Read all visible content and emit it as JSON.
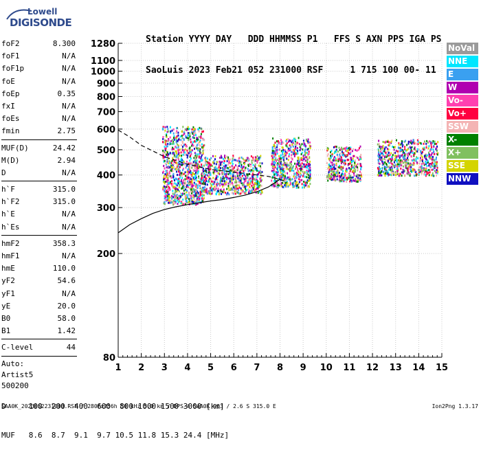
{
  "logo": {
    "line1": "Lowell",
    "line2": "DIGISONDE"
  },
  "header": {
    "line1": "Station YYYY DAY   DDD HHMMSS P1   FFS S AXN PPS IGA PS",
    "line2": "SaoLuis 2023 Feb21 052 231000 RSF     1 715 100 00- 11"
  },
  "params": [
    {
      "k": "foF2",
      "v": "8.300"
    },
    {
      "k": "foF1",
      "v": "N/A"
    },
    {
      "k": "foF1p",
      "v": "N/A"
    },
    {
      "k": "foE",
      "v": "N/A"
    },
    {
      "k": "foEp",
      "v": "0.35"
    },
    {
      "k": "fxI",
      "v": "N/A"
    },
    {
      "k": "foEs",
      "v": "N/A"
    },
    {
      "k": "fmin",
      "v": "2.75"
    },
    {
      "k": "MUF(D)",
      "v": "24.42",
      "sep": true
    },
    {
      "k": "M(D)",
      "v": "2.94"
    },
    {
      "k": "D",
      "v": "N/A"
    },
    {
      "k": "h`F",
      "v": "315.0",
      "sep": true
    },
    {
      "k": "h`F2",
      "v": "315.0"
    },
    {
      "k": "h`E",
      "v": "N/A"
    },
    {
      "k": "h`Es",
      "v": "N/A"
    },
    {
      "k": "hmF2",
      "v": "358.3",
      "sep": true
    },
    {
      "k": "hmF1",
      "v": "N/A"
    },
    {
      "k": "hmE",
      "v": "110.0"
    },
    {
      "k": "yF2",
      "v": "54.6"
    },
    {
      "k": "yF1",
      "v": "N/A"
    },
    {
      "k": "yE",
      "v": "20.0"
    },
    {
      "k": "B0",
      "v": "58.0"
    },
    {
      "k": "B1",
      "v": "1.42"
    },
    {
      "k": "C-level",
      "v": "44",
      "sep": true
    }
  ],
  "auto": [
    "Auto:",
    "Artist5",
    "500200"
  ],
  "legend": [
    {
      "label": "NoVal",
      "color": "#9a9a9a"
    },
    {
      "label": "NNE",
      "color": "#00e6ff"
    },
    {
      "label": "E",
      "color": "#3aa0f0"
    },
    {
      "label": "W",
      "color": "#b000b0"
    },
    {
      "label": "Vo-",
      "color": "#ff40b0"
    },
    {
      "label": "Vo+",
      "color": "#ff0040"
    },
    {
      "label": "SSW",
      "color": "#f4b4b4"
    },
    {
      "label": "X-",
      "color": "#008000"
    },
    {
      "label": "X+",
      "color": "#80c060"
    },
    {
      "label": "SSE",
      "color": "#d4d400"
    },
    {
      "label": "NNW",
      "color": "#1010c0"
    }
  ],
  "bottom": {
    "line1": "D     100  200  400  600  800 1000 1500 3000 [km]",
    "line2": "MUF   8.6  8.7  9.1  9.7 10.5 11.8 15.3 24.4 [MHz]"
  },
  "footer_left": "SAA0K_2023052231000.RSF / 280fx256h 50 kHz 5.0 km / DPS-4 SAA0K 903 / 2.6 S 315.0 E",
  "footer_right": "Ion2Png 1.3.17",
  "chart_data": {
    "type": "scatter",
    "title": "",
    "xlabel": "",
    "ylabel": "",
    "x_ticks": [
      "1",
      "2",
      "3",
      "4",
      "5",
      "6",
      "7",
      "8",
      "9",
      "10",
      "11",
      "12",
      "13",
      "14",
      "15"
    ],
    "y_ticks": [
      "80",
      "200",
      "300",
      "400",
      "500",
      "600",
      "700",
      "800",
      "900",
      "1000",
      "1100",
      "1280"
    ],
    "xlim": [
      1,
      15
    ],
    "ylim": [
      80,
      1280
    ],
    "y_scale": "log",
    "grid": "dotted",
    "traces": [
      {
        "name": "",
        "x": [
          1.0,
          1.5,
          2.0,
          2.5,
          3.0,
          3.5,
          4.0,
          4.5,
          5.0,
          5.5,
          6.0,
          6.5,
          7.0,
          7.5,
          8.0
        ],
        "y": [
          240,
          258,
          272,
          285,
          295,
          302,
          308,
          313,
          318,
          322,
          328,
          335,
          345,
          360,
          385
        ],
        "style": "solid"
      },
      {
        "name": "",
        "x": [
          1.0,
          1.5,
          2.0,
          3.0,
          4.0,
          5.0,
          6.0,
          7.0,
          7.5,
          8.0,
          8.3
        ],
        "y": [
          595,
          560,
          520,
          470,
          440,
          420,
          410,
          400,
          395,
          385,
          375
        ],
        "style": "dashed"
      }
    ],
    "clusters": [
      {
        "x_range": [
          2.9,
          4.7
        ],
        "y_range": [
          310,
          620
        ]
      },
      {
        "x_range": [
          4.7,
          5.9
        ],
        "y_range": [
          340,
          480
        ]
      },
      {
        "x_range": [
          5.9,
          7.2
        ],
        "y_range": [
          340,
          480
        ]
      },
      {
        "x_range": [
          7.6,
          9.3
        ],
        "y_range": [
          360,
          560
        ]
      },
      {
        "x_range": [
          10.0,
          11.5
        ],
        "y_range": [
          380,
          520
        ]
      },
      {
        "x_range": [
          12.2,
          14.8
        ],
        "y_range": [
          400,
          550
        ]
      }
    ]
  }
}
